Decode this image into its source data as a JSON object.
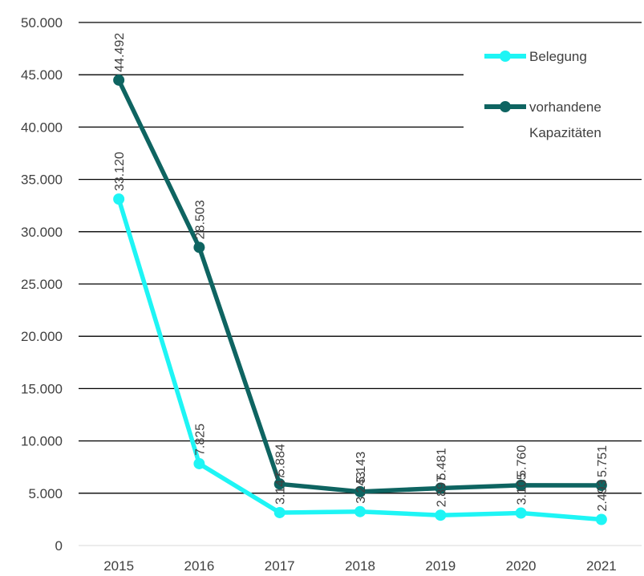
{
  "chart_data": {
    "type": "line",
    "title": "",
    "xlabel": "",
    "ylabel": "",
    "categories": [
      "2015",
      "2016",
      "2017",
      "2018",
      "2019",
      "2020",
      "2021"
    ],
    "ylim": [
      0,
      50000
    ],
    "yticks": [
      0,
      5000,
      10000,
      15000,
      20000,
      25000,
      30000,
      35000,
      40000,
      45000,
      50000
    ],
    "ytick_labels": [
      "0",
      "5.000",
      "10.000",
      "15.000",
      "20.000",
      "25.000",
      "30.000",
      "35.000",
      "40.000",
      "45.000",
      "50.000"
    ],
    "grid": true,
    "legend_position": "top-right",
    "series": [
      {
        "name": "Belegung",
        "color": "#1ef5f5",
        "values": [
          33120,
          7825,
          3147,
          3243,
          2897,
          3105,
          2493
        ],
        "labels": [
          "33.120",
          "7.825",
          "3.147",
          "3.243",
          "2.897",
          "3.105",
          "2.493"
        ]
      },
      {
        "name": "vorhandene Kapazitäten",
        "legend_lines": [
          "vorhandene",
          "Kapazitäten"
        ],
        "color": "#0e6461",
        "values": [
          44492,
          28503,
          5884,
          5143,
          5481,
          5760,
          5751
        ],
        "labels": [
          "44.492",
          "28.503",
          "5.884",
          "5.143",
          "5.481",
          "5.760",
          "5.751"
        ]
      }
    ]
  }
}
